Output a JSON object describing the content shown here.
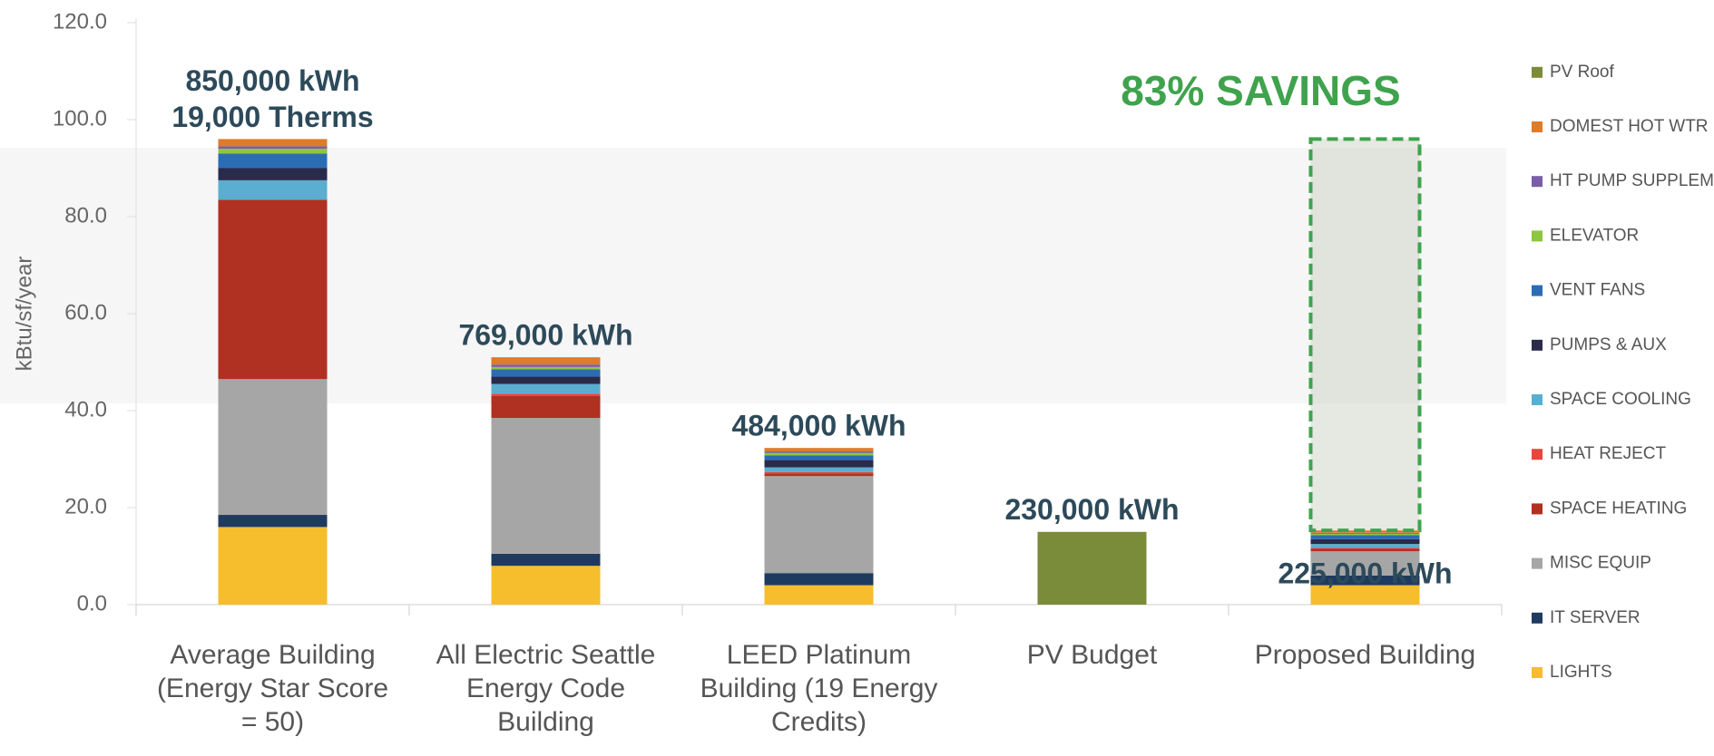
{
  "chart_data": {
    "type": "stacked_bar",
    "ylabel": "kBtu/sf/year",
    "categories": [
      "Average Building (Energy Star Score = 50)",
      "All Electric Seattle Energy Code Building",
      "LEED Platinum Building (19 Energy Credits)",
      "PV Budget",
      "Proposed Building"
    ],
    "series": [
      {
        "name": "LIGHTS",
        "color": "#f6bd2c",
        "values": [
          16,
          8,
          4,
          0,
          4
        ]
      },
      {
        "name": "IT SERVER",
        "color": "#1f3a5f",
        "values": [
          2.5,
          2.5,
          2.5,
          0,
          2
        ]
      },
      {
        "name": "MISC EQUIP",
        "color": "#a6a6a6",
        "values": [
          28,
          28,
          20,
          0,
          5
        ]
      },
      {
        "name": "SPACE HEATING",
        "color": "#b03022",
        "values": [
          37,
          4.5,
          0.5,
          0,
          0.5
        ]
      },
      {
        "name": "HEAT REJECT",
        "color": "#e8453c",
        "values": [
          0,
          0.5,
          0.3,
          0,
          0.2
        ]
      },
      {
        "name": "SPACE COOLING",
        "color": "#5aaed0",
        "values": [
          4,
          2,
          1,
          0,
          0.8
        ]
      },
      {
        "name": "PUMPS & AUX",
        "color": "#2a2a4a",
        "values": [
          2.5,
          1.5,
          1.5,
          0,
          1
        ]
      },
      {
        "name": "VENT FANS",
        "color": "#2a6db5",
        "values": [
          3,
          1.5,
          1,
          0,
          0.8
        ]
      },
      {
        "name": "ELEVATOR",
        "color": "#8dc63f",
        "values": [
          1,
          0.5,
          0.5,
          0,
          0.3
        ]
      },
      {
        "name": "HT PUMP SUPPLEM",
        "color": "#7a5ea8",
        "values": [
          0.5,
          0.5,
          0.3,
          0,
          0.2
        ]
      },
      {
        "name": "DOMEST HOT WTR",
        "color": "#e07b28",
        "values": [
          1.5,
          1.5,
          0.7,
          0,
          0.5
        ]
      },
      {
        "name": "PV Roof",
        "color": "#7a8b3a",
        "values": [
          0,
          0,
          0,
          15,
          0
        ]
      }
    ],
    "bar_labels": [
      [
        "850,000 kWh",
        "19,000 Therms"
      ],
      [
        "769,000 kWh"
      ],
      [
        "484,000 kWh"
      ],
      [
        "230,000 kWh"
      ],
      [
        "225,000 kWh"
      ]
    ],
    "savings_label": "83% SAVINGS",
    "ylim": [
      0,
      120
    ],
    "yticks": [
      {
        "value": 0,
        "label": "0.0"
      },
      {
        "value": 20,
        "label": "20.0"
      },
      {
        "value": 40,
        "label": "40.0"
      },
      {
        "value": 60,
        "label": "60.0"
      },
      {
        "value": 80,
        "label": "80.0"
      },
      {
        "value": 100,
        "label": "100.0"
      },
      {
        "value": 120,
        "label": "120.0"
      }
    ]
  }
}
